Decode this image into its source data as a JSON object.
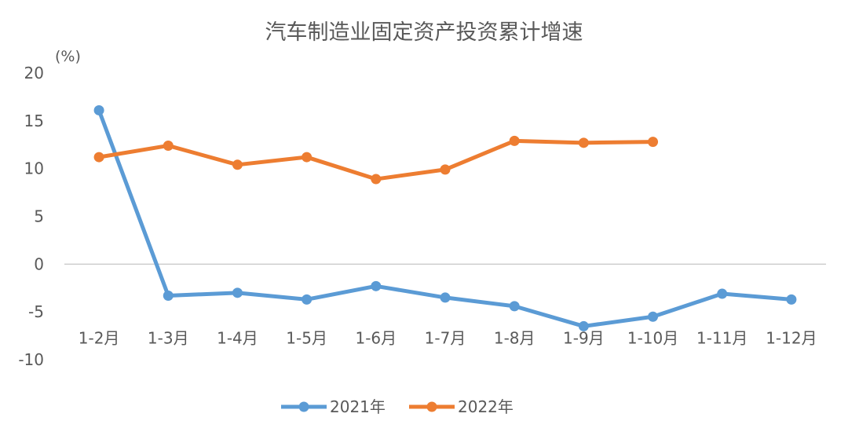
{
  "chart_data": {
    "type": "line",
    "title": "汽车制造业固定资产投资累计增速",
    "ylabel": "(%)",
    "xlabel": "",
    "categories": [
      "1-2月",
      "1-3月",
      "1-4月",
      "1-5月",
      "1-6月",
      "1-7月",
      "1-8月",
      "1-9月",
      "1-10月",
      "1-11月",
      "1-12月"
    ],
    "ylim": [
      -10,
      20
    ],
    "yticks": [
      -10,
      -5,
      0,
      5,
      10,
      15,
      20
    ],
    "grid": false,
    "legend_position": "bottom",
    "series": [
      {
        "name": "2021年",
        "color": "#5B9BD5",
        "values": [
          16.1,
          -3.3,
          -3.0,
          -3.7,
          -2.3,
          -3.5,
          -4.4,
          -6.5,
          -5.5,
          -3.1,
          -3.7
        ]
      },
      {
        "name": "2022年",
        "color": "#ED7D31",
        "values": [
          11.2,
          12.4,
          10.4,
          11.2,
          8.9,
          9.9,
          12.9,
          12.7,
          12.8,
          null,
          null
        ]
      }
    ]
  }
}
